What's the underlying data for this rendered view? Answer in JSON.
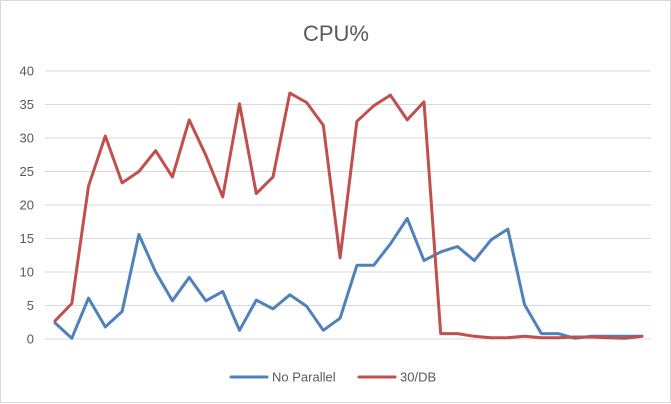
{
  "chart_data": {
    "type": "line",
    "title": "CPU%",
    "xlabel": "",
    "ylabel": "",
    "ylim": [
      0,
      40
    ],
    "yticks": [
      0,
      5,
      10,
      15,
      20,
      25,
      30,
      35,
      40
    ],
    "grid": "horizontal",
    "legend_position": "bottom",
    "x": [
      1,
      2,
      3,
      4,
      5,
      6,
      7,
      8,
      9,
      10,
      11,
      12,
      13,
      14,
      15,
      16,
      17,
      18,
      19,
      20,
      21,
      22,
      23,
      24,
      25,
      26,
      27,
      28,
      29,
      30,
      31,
      32,
      33,
      34,
      35,
      36
    ],
    "series": [
      {
        "name": "No Parallel",
        "color": "#4f81bd",
        "values": [
          2.4,
          0.1,
          6.1,
          1.8,
          4.1,
          15.6,
          10.0,
          5.7,
          9.2,
          5.7,
          7.1,
          1.3,
          5.8,
          4.5,
          6.6,
          4.9,
          1.3,
          3.1,
          11.0,
          11.0,
          14.2,
          18.0,
          11.7,
          13.0,
          13.8,
          11.7,
          14.8,
          16.4,
          5.1,
          0.8,
          0.8,
          0.1,
          0.4,
          0.4,
          0.4,
          0.4
        ]
      },
      {
        "name": "30/DB",
        "color": "#c0504d",
        "values": [
          2.7,
          5.3,
          22.8,
          30.3,
          23.3,
          25.0,
          28.1,
          24.2,
          32.7,
          27.4,
          21.2,
          35.1,
          21.7,
          24.2,
          36.7,
          35.3,
          31.9,
          12.1,
          32.5,
          34.8,
          36.4,
          32.7,
          35.4,
          0.8,
          0.8,
          0.4,
          0.2,
          0.2,
          0.4,
          0.2,
          0.2,
          0.3,
          0.3,
          0.2,
          0.1,
          0.4
        ]
      }
    ]
  }
}
